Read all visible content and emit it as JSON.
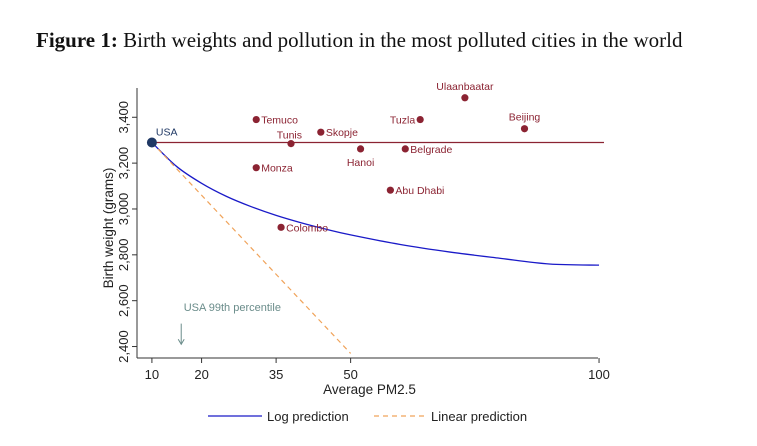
{
  "figure": {
    "label": "Figure 1:",
    "title": "Birth weights and pollution in the most polluted cities in the world"
  },
  "chart_data": {
    "type": "scatter",
    "xlabel": "Average PM2.5",
    "ylabel": "Birth weight (grams)",
    "xlim": [
      7,
      101
    ],
    "ylim": [
      2350,
      3580
    ],
    "xticks": [
      10,
      20,
      35,
      50,
      100
    ],
    "yticks": [
      2400,
      2600,
      2800,
      3000,
      3200,
      3400
    ],
    "ytick_labels": [
      "2,400",
      "2,600",
      "2,800",
      "3,000",
      "3,200",
      "3,400"
    ],
    "grid": false,
    "legend_position": "bottom",
    "colors": {
      "points": "#8b2332",
      "usa": "#1f3864",
      "log": "#1a1ac8",
      "linear": "#f0a35a",
      "annotation": "#6a8c8a",
      "axis": "#333333"
    },
    "usa": {
      "label": "USA",
      "x": 10,
      "y": 3290
    },
    "cities": [
      {
        "name": "Temuco",
        "x": 31,
        "y": 3390,
        "label_pos": "right"
      },
      {
        "name": "Tunis",
        "x": 38,
        "y": 3285,
        "label_pos": "above-left"
      },
      {
        "name": "Skopje",
        "x": 44,
        "y": 3335,
        "label_pos": "right"
      },
      {
        "name": "Tuzla",
        "x": 64,
        "y": 3390,
        "label_pos": "left"
      },
      {
        "name": "Ulaanbaatar",
        "x": 73,
        "y": 3485,
        "label_pos": "above"
      },
      {
        "name": "Beijing",
        "x": 85,
        "y": 3350,
        "label_pos": "above"
      },
      {
        "name": "Hanoi",
        "x": 52,
        "y": 3262,
        "label_pos": "below"
      },
      {
        "name": "Belgrade",
        "x": 61,
        "y": 3262,
        "label_pos": "right"
      },
      {
        "name": "Monza",
        "x": 31,
        "y": 3180,
        "label_pos": "right"
      },
      {
        "name": "Abu Dhabi",
        "x": 58,
        "y": 3082,
        "label_pos": "right"
      },
      {
        "name": "Colombo",
        "x": 36,
        "y": 2920,
        "label_pos": "right"
      }
    ],
    "series": [
      {
        "name": "Log prediction",
        "style": "solid",
        "x": [
          10,
          15,
          20,
          25,
          30,
          35,
          40,
          45,
          50,
          60,
          70,
          80,
          90,
          100
        ],
        "y": [
          3290,
          3185,
          3112,
          3055,
          3010,
          2972,
          2940,
          2912,
          2887,
          2845,
          2812,
          2785,
          2760,
          2755
        ]
      },
      {
        "name": "Linear prediction",
        "style": "dashed",
        "x": [
          10,
          50
        ],
        "y": [
          3290,
          2370
        ]
      }
    ],
    "reference_line": {
      "y": 3290,
      "x": [
        10,
        101
      ]
    },
    "annotation": {
      "text": "USA 99th percentile",
      "x": 16,
      "arrow_to_y": 2410
    }
  }
}
